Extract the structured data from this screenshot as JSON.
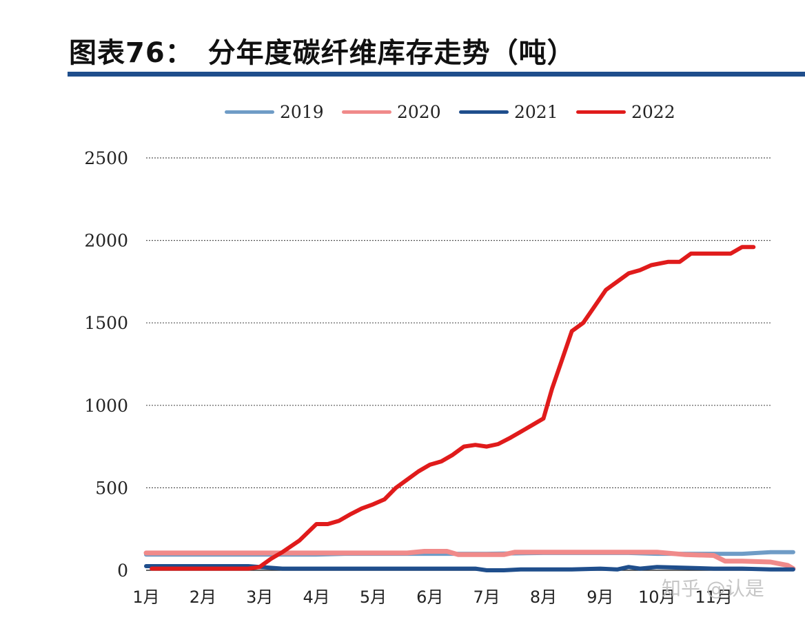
{
  "title": "图表76：　分年度碳纤维库存走势（吨）",
  "watermark": "知乎 @认是",
  "colors": {
    "rule": "#1f4e8c",
    "grid": "#555555",
    "2019": "#6f9cc6",
    "2020": "#f08a8a",
    "2021": "#1f4e8c",
    "2022": "#e01b1b"
  },
  "chart_data": {
    "type": "line",
    "x_tick_labels": [
      "1月",
      "2月",
      "3月",
      "4月",
      "5月",
      "6月",
      "7月",
      "8月",
      "9月",
      "10月",
      "11月"
    ],
    "y_tick_labels": [
      "0",
      "500",
      "1000",
      "1500",
      "2000",
      "2500"
    ],
    "ylim": [
      0,
      2500
    ],
    "xlim": [
      1,
      12
    ],
    "grid": true,
    "legend_position": "top",
    "series": [
      {
        "name": "2019",
        "key": "2019",
        "width": 6,
        "points": [
          [
            1,
            95
          ],
          [
            2,
            95
          ],
          [
            3,
            95
          ],
          [
            3.5,
            95
          ],
          [
            4,
            95
          ],
          [
            4.5,
            100
          ],
          [
            5,
            100
          ],
          [
            6,
            100
          ],
          [
            7,
            100
          ],
          [
            8,
            105
          ],
          [
            9,
            105
          ],
          [
            9.5,
            105
          ],
          [
            10,
            100
          ],
          [
            11,
            100
          ],
          [
            11.5,
            100
          ],
          [
            12,
            110
          ],
          [
            12.4,
            110
          ]
        ]
      },
      {
        "name": "2020",
        "key": "2020",
        "width": 7,
        "points": [
          [
            1,
            105
          ],
          [
            2,
            105
          ],
          [
            3,
            105
          ],
          [
            4,
            105
          ],
          [
            5,
            105
          ],
          [
            5.6,
            105
          ],
          [
            5.9,
            115
          ],
          [
            6.3,
            115
          ],
          [
            6.5,
            95
          ],
          [
            7,
            95
          ],
          [
            7.3,
            95
          ],
          [
            7.5,
            110
          ],
          [
            8,
            110
          ],
          [
            9,
            110
          ],
          [
            9.5,
            110
          ],
          [
            10,
            110
          ],
          [
            10.5,
            95
          ],
          [
            11,
            90
          ],
          [
            11.2,
            55
          ],
          [
            11.5,
            55
          ],
          [
            12,
            50
          ],
          [
            12.3,
            30
          ],
          [
            12.4,
            10
          ]
        ]
      },
      {
        "name": "2021",
        "key": "2021",
        "width": 6,
        "points": [
          [
            1,
            25
          ],
          [
            2,
            25
          ],
          [
            2.8,
            25
          ],
          [
            3,
            20
          ],
          [
            3.4,
            10
          ],
          [
            4,
            10
          ],
          [
            5,
            10
          ],
          [
            6,
            10
          ],
          [
            6.8,
            10
          ],
          [
            7,
            0
          ],
          [
            7.3,
            0
          ],
          [
            7.6,
            5
          ],
          [
            8,
            5
          ],
          [
            8.5,
            5
          ],
          [
            9,
            10
          ],
          [
            9.3,
            5
          ],
          [
            9.5,
            20
          ],
          [
            9.7,
            10
          ],
          [
            10,
            20
          ],
          [
            10.5,
            15
          ],
          [
            11,
            10
          ],
          [
            11.5,
            10
          ],
          [
            12,
            5
          ],
          [
            12.4,
            5
          ]
        ]
      },
      {
        "name": "2022",
        "key": "2022",
        "width": 6,
        "points": [
          [
            1.1,
            10
          ],
          [
            2,
            10
          ],
          [
            2.8,
            10
          ],
          [
            3,
            20
          ],
          [
            3.2,
            70
          ],
          [
            3.4,
            110
          ],
          [
            3.7,
            180
          ],
          [
            4,
            280
          ],
          [
            4.2,
            280
          ],
          [
            4.4,
            300
          ],
          [
            4.6,
            340
          ],
          [
            4.8,
            375
          ],
          [
            5,
            400
          ],
          [
            5.2,
            430
          ],
          [
            5.4,
            500
          ],
          [
            5.6,
            550
          ],
          [
            5.8,
            600
          ],
          [
            6,
            640
          ],
          [
            6.2,
            660
          ],
          [
            6.4,
            700
          ],
          [
            6.6,
            750
          ],
          [
            6.8,
            760
          ],
          [
            7,
            750
          ],
          [
            7.2,
            765
          ],
          [
            7.4,
            800
          ],
          [
            7.6,
            840
          ],
          [
            7.8,
            880
          ],
          [
            8,
            920
          ],
          [
            8.15,
            1100
          ],
          [
            8.3,
            1250
          ],
          [
            8.5,
            1450
          ],
          [
            8.7,
            1500
          ],
          [
            8.9,
            1600
          ],
          [
            9.1,
            1700
          ],
          [
            9.3,
            1750
          ],
          [
            9.5,
            1800
          ],
          [
            9.7,
            1820
          ],
          [
            9.9,
            1850
          ],
          [
            10.2,
            1870
          ],
          [
            10.4,
            1870
          ],
          [
            10.6,
            1920
          ],
          [
            11,
            1920
          ],
          [
            11.3,
            1920
          ],
          [
            11.5,
            1960
          ],
          [
            11.7,
            1960
          ]
        ]
      }
    ]
  }
}
